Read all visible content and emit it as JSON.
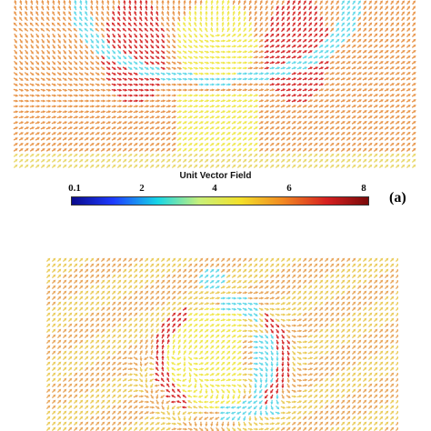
{
  "legend": {
    "title": "Unit Vector Field",
    "ticks": [
      "0.1",
      "2",
      "4",
      "6",
      "8"
    ],
    "tick_values": [
      0.1,
      2,
      4,
      6,
      8
    ],
    "range": [
      0.1,
      8
    ],
    "colormap": [
      "#0a0a8c",
      "#1e3cff",
      "#17d6e6",
      "#c8f07a",
      "#f3e02a",
      "#f28a22",
      "#d62020",
      "#7a0a0a"
    ]
  },
  "panel_label": "(a)",
  "colors": {
    "background": "#ffffff",
    "dominant_orange": "#e8954a",
    "domain_wall_red": "#d62a2a",
    "core_yellow": "#f0e84a",
    "cyan_low": "#5fd8e8"
  }
}
